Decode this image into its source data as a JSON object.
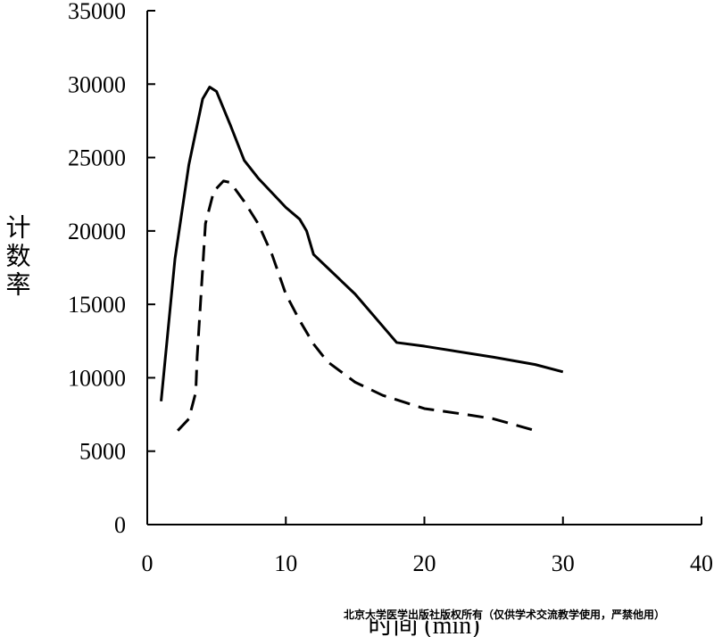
{
  "chart_data": {
    "type": "line",
    "y_label": "计数率",
    "x_label": "时间 (min)",
    "watermark": "北京大学医学出版社版权所有（仅供学术交流教学使用，严禁他用）",
    "xlim": [
      0,
      40
    ],
    "xticks": [
      0,
      10,
      20,
      30,
      40
    ],
    "ylim": [
      0,
      35000
    ],
    "yticks": [
      0,
      5000,
      10000,
      15000,
      20000,
      25000,
      30000,
      35000
    ],
    "series": [
      {
        "color": "#000000",
        "dashed": false,
        "x": [
          1,
          2,
          3,
          4,
          4.5,
          5,
          6,
          7,
          8,
          10,
          11,
          11.5,
          12,
          13,
          15,
          17,
          18,
          20,
          25,
          28,
          30
        ],
        "values": [
          8400,
          18100,
          24500,
          29000,
          29800,
          29500,
          27200,
          24800,
          23600,
          21600,
          20800,
          20000,
          18400,
          17500,
          15700,
          13500,
          12400,
          12150,
          11400,
          10900,
          10400
        ]
      },
      {
        "color": "#000000",
        "dashed": true,
        "x": [
          2.2,
          3,
          3.5,
          3.6,
          4.2,
          4.8,
          5.5,
          6,
          7,
          8,
          9,
          10,
          11,
          12,
          13,
          15,
          17,
          20,
          23,
          25,
          28
        ],
        "values": [
          6400,
          7200,
          9000,
          11400,
          20500,
          22700,
          23400,
          23300,
          22000,
          20500,
          18400,
          15700,
          13900,
          12300,
          11100,
          9700,
          8800,
          7900,
          7500,
          7200,
          6400
        ]
      }
    ]
  }
}
